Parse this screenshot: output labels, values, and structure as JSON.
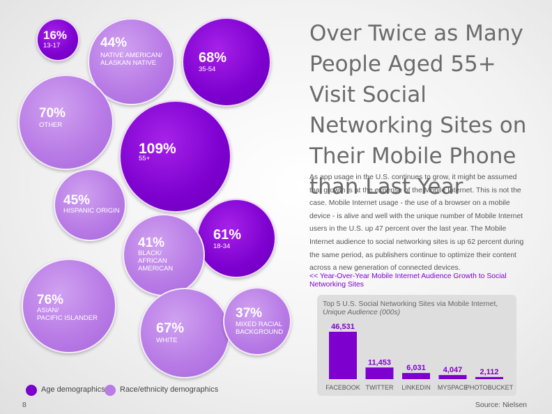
{
  "title": "Over Twice as Many People Aged 55+ Visit Social Networking Sites on Their Mobile Phone than Last Year",
  "body": "As app usage in the U.S. continues to grow, it might be assumed that growth is at the expense of the Mobile Internet. This is not the case. Mobile Internet usage - the use of a browser on a mobile device - is alive and well with the unique number of Mobile Internet users in the U.S. up 47 percent over the last year. The Mobile Internet audience to social networking sites is up 62 percent during the same period, as publishers continue to optimize their content across a new generation of connected devices.",
  "link": "<< Year-Over-Year Mobile Internet Audience Growth to Social Networking Sites",
  "legend": {
    "age": "Age demographics",
    "race": "Race/ethnicity demographics"
  },
  "page_number": "8",
  "source": "Source: Nielsen",
  "colors": {
    "age": "#7d00cf",
    "race": "#b97ce6",
    "bar": "#7d00cf"
  },
  "chart_data": [
    {
      "type": "bubble",
      "series": [
        {
          "name": "Age demographics",
          "points": [
            {
              "label": "13-17",
              "value": "16%"
            },
            {
              "label": "35-54",
              "value": "68%"
            },
            {
              "label": "55+",
              "value": "109%"
            },
            {
              "label": "18-34",
              "value": "61%"
            }
          ]
        },
        {
          "name": "Race/ethnicity demographics",
          "points": [
            {
              "label": "NATIVE AMERICAN/ ALASKAN NATIVE",
              "value": "44%"
            },
            {
              "label": "OTHER",
              "value": "70%"
            },
            {
              "label": "HISPANIC ORIGIN",
              "value": "45%"
            },
            {
              "label": "BLACK/ AFRICAN AMERICAN",
              "value": "41%"
            },
            {
              "label": "ASIAN/ PACIFIC ISLANDER",
              "value": "76%"
            },
            {
              "label": "WHITE",
              "value": "67%"
            },
            {
              "label": "MIXED RACIAL BACKGROUND",
              "value": "37%"
            }
          ]
        }
      ]
    },
    {
      "type": "bar",
      "title": "Top 5 U.S. Social Networking Sites via Mobile Internet,",
      "subtitle": "Unique Audience (000s)",
      "categories": [
        "FACEBOOK",
        "TWITTER",
        "LINKEDIN",
        "MYSPACE",
        "PHOTOBUCKET"
      ],
      "values": [
        46531,
        11453,
        6031,
        4047,
        2112
      ],
      "value_labels": [
        "46,531",
        "11,453",
        "6,031",
        "4,047",
        "2,112"
      ],
      "ylim": [
        0,
        46531
      ]
    }
  ]
}
